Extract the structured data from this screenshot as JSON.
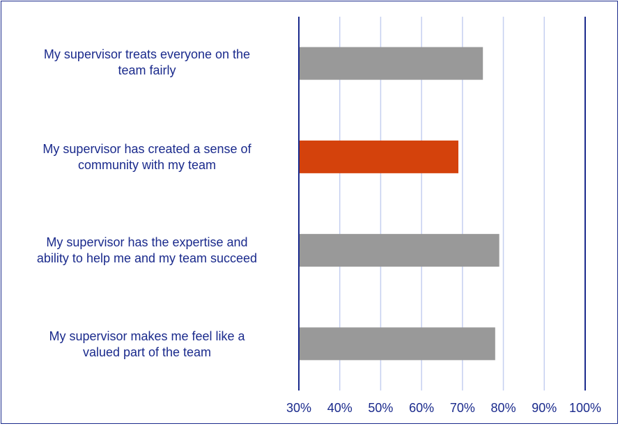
{
  "chart_data": {
    "type": "bar",
    "orientation": "horizontal",
    "categories": [
      "My supervisor treats everyone on the team fairly",
      "My supervisor has created a sense of community with my team",
      "My supervisor has the expertise and ability to help me and my team succeed",
      "My supervisor makes me feel like a valued part of the team"
    ],
    "display_labels": [
      "My supervisor treats everyone on the\nteam fairly",
      "My supervisor has created a sense of\ncommunity with my team",
      "My supervisor has the expertise and\nability to help me and my team succeed",
      "My supervisor makes me feel like a\nvalued part of the team"
    ],
    "values": [
      75,
      69,
      79,
      78
    ],
    "bar_colors": [
      "#999999",
      "#d4420c",
      "#999999",
      "#999999"
    ],
    "xlim": [
      30,
      100
    ],
    "ticks": [
      "30%",
      "40%",
      "50%",
      "60%",
      "70%",
      "80%",
      "90%",
      "100%"
    ],
    "tick_values": [
      30,
      40,
      50,
      60,
      70,
      80,
      90,
      100
    ],
    "grid": true,
    "legend": "none",
    "colors": {
      "axis": "#1a2a8c",
      "grid": "#c5cff0",
      "text": "#1a2a8c"
    }
  }
}
